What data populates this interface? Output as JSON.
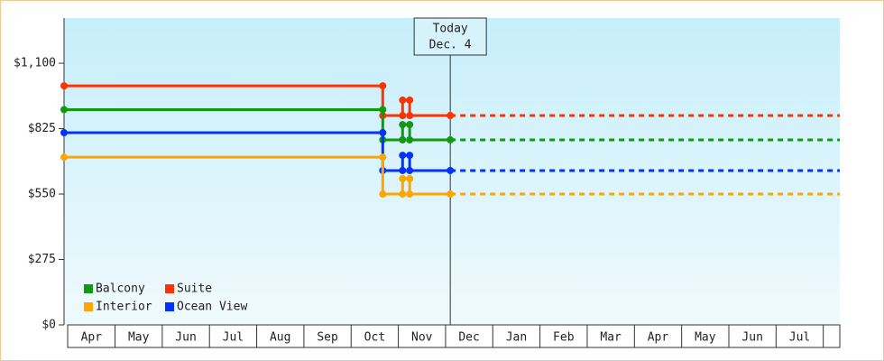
{
  "chart_data": {
    "type": "line",
    "x": [
      -0.08,
      6.67,
      6.67,
      7.09,
      7.09,
      7.24,
      7.24,
      8.1
    ],
    "series": [
      {
        "name": "Suite",
        "color": "#ff3300",
        "values": [
          1005,
          1005,
          880,
          880,
          945,
          945,
          880,
          880
        ]
      },
      {
        "name": "Balcony",
        "color": "#119911",
        "values": [
          905,
          905,
          778,
          778,
          842,
          842,
          778,
          778
        ]
      },
      {
        "name": "Ocean View",
        "color": "#0033ff",
        "values": [
          808,
          808,
          649,
          649,
          713,
          713,
          649,
          649
        ]
      },
      {
        "name": "Interior",
        "color": "#ffa500",
        "values": [
          705,
          705,
          550,
          550,
          615,
          615,
          550,
          550
        ]
      }
    ],
    "xlim": [
      -0.08,
      16.35
    ],
    "xticks": [
      {
        "value": 0.5,
        "label": "Apr"
      },
      {
        "value": 1.5,
        "label": "May"
      },
      {
        "value": 2.5,
        "label": "Jun"
      },
      {
        "value": 3.5,
        "label": "Jul"
      },
      {
        "value": 4.5,
        "label": "Aug"
      },
      {
        "value": 5.5,
        "label": "Sep"
      },
      {
        "value": 6.5,
        "label": "Oct"
      },
      {
        "value": 7.5,
        "label": "Nov"
      },
      {
        "value": 8.5,
        "label": "Dec"
      },
      {
        "value": 9.5,
        "label": "Jan"
      },
      {
        "value": 10.5,
        "label": "Feb"
      },
      {
        "value": 11.5,
        "label": "Mar"
      },
      {
        "value": 12.5,
        "label": "Apr"
      },
      {
        "value": 13.5,
        "label": "May"
      },
      {
        "value": 14.5,
        "label": "Jun"
      },
      {
        "value": 15.5,
        "label": "Jul"
      }
    ],
    "ylim": [
      0,
      1290
    ],
    "yticks": [
      {
        "value": 0,
        "label": "$0"
      },
      {
        "value": 275,
        "label": "$275"
      },
      {
        "value": 550,
        "label": "$550"
      },
      {
        "value": 825,
        "label": "$825"
      },
      {
        "value": 1100,
        "label": "$1,100"
      }
    ],
    "annotation": {
      "x": 8.1,
      "lines": [
        "Today",
        "Dec. 4"
      ]
    },
    "legend": "lower left"
  }
}
